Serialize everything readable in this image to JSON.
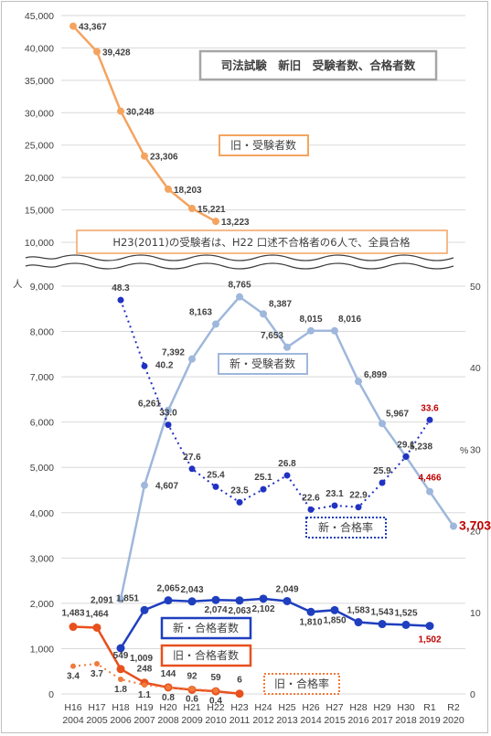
{
  "title": "司法試験　新旧　受験者数、合格者数",
  "unit_left": "人",
  "unit_right": "%",
  "note": "H23(2011)の受験者は、H22 口述不合格者の6人で、全員合格",
  "legends": {
    "old_examinees": "旧・受験者数",
    "new_examinees": "新・受験者数",
    "new_pass_rate": "新・合格率",
    "new_passers": "新・合格者数",
    "old_passers": "旧・合格者数",
    "old_pass_rate": "旧・合格率"
  },
  "colors": {
    "old_examinees": "#f4a460",
    "new_examinees": "#9fb7dc",
    "new_pass_rate": "#2132c2",
    "new_passers": "#1f3fbf",
    "old_passers": "#e8501e",
    "old_pass_rate": "#f07a3c",
    "highlight": "#c00000"
  },
  "chart_data": [
    {
      "type": "line",
      "panel": "upper",
      "yticks": [
        "10,000",
        "15,000",
        "20,000",
        "25,000",
        "30,000",
        "35,000",
        "40,000",
        "45,000"
      ],
      "ylim": [
        10000,
        45000
      ],
      "series": [
        {
          "name": "旧・受験者数",
          "x": [
            0,
            1,
            2,
            3,
            4,
            5,
            6
          ],
          "values": [
            43367,
            39428,
            30248,
            23306,
            18203,
            15221,
            13223
          ],
          "labels": [
            "43,367",
            "39,428",
            "30,248",
            "23,306",
            "18,203",
            "15,221",
            "13,223"
          ]
        }
      ]
    },
    {
      "type": "line",
      "panel": "lower",
      "categories": [
        "H16",
        "H17",
        "H18",
        "H19",
        "H20",
        "H21",
        "H22",
        "H23",
        "H24",
        "H25",
        "H26",
        "H27",
        "H28",
        "H29",
        "H30",
        "R1",
        "R2"
      ],
      "years": [
        "2004",
        "2005",
        "2006",
        "2007",
        "2008",
        "2009",
        "2010",
        "2011",
        "2012",
        "2013",
        "2014",
        "2015",
        "2016",
        "2017",
        "2018",
        "2019",
        "2020"
      ],
      "yticks_left": [
        "0",
        "1,000",
        "2,000",
        "3,000",
        "4,000",
        "5,000",
        "6,000",
        "7,000",
        "8,000",
        "9,000"
      ],
      "ylim_left": [
        0,
        9000
      ],
      "yticks_right": [
        "0",
        "10",
        "20",
        "30",
        "40",
        "50"
      ],
      "ylim_right": [
        0,
        50
      ],
      "series": [
        {
          "name": "新・受験者数",
          "axis": "left",
          "x": [
            2,
            3,
            4,
            5,
            6,
            7,
            8,
            9,
            10,
            11,
            12,
            13,
            14,
            15,
            16
          ],
          "values": [
            2091,
            4607,
            6261,
            7392,
            8163,
            8765,
            8387,
            7653,
            8015,
            8016,
            6899,
            5967,
            5238,
            4466,
            3703
          ],
          "labels": [
            "2,091",
            "4,607",
            "6,261",
            "7,392",
            "8,163",
            "8,765",
            "8,387",
            "7,653",
            "8,015",
            "8,016",
            "6,899",
            "5,967",
            "5,238",
            "4,466",
            "3,703"
          ]
        },
        {
          "name": "新・合格率",
          "axis": "right",
          "x": [
            2,
            3,
            4,
            5,
            6,
            7,
            8,
            9,
            10,
            11,
            12,
            13,
            14,
            15
          ],
          "values": [
            48.3,
            40.2,
            33.0,
            27.6,
            25.4,
            23.5,
            25.1,
            26.8,
            22.6,
            23.1,
            22.9,
            25.9,
            29.1,
            33.6
          ],
          "labels": [
            "48.3",
            "40.2",
            "33.0",
            "27.6",
            "25.4",
            "23.5",
            "25.1",
            "26.8",
            "22.6",
            "23.1",
            "22.9",
            "25.9",
            "29.1",
            "33.6"
          ]
        },
        {
          "name": "新・合格者数",
          "axis": "left",
          "x": [
            2,
            3,
            4,
            5,
            6,
            7,
            8,
            9,
            10,
            11,
            12,
            13,
            14,
            15
          ],
          "values": [
            1009,
            1851,
            2065,
            2043,
            2074,
            2063,
            2102,
            2049,
            1810,
            1850,
            1583,
            1543,
            1525,
            1502
          ],
          "labels": [
            "1,009",
            "1,851",
            "2,065",
            "2,043",
            "2,074",
            "2,063",
            "2,102",
            "2,049",
            "1,810",
            "1,850",
            "1,583",
            "1,543",
            "1,525",
            "1,502"
          ]
        },
        {
          "name": "旧・合格者数",
          "axis": "left",
          "x": [
            0,
            1,
            2,
            3,
            4,
            5,
            6,
            7
          ],
          "values": [
            1483,
            1464,
            549,
            248,
            144,
            92,
            59,
            6
          ],
          "labels": [
            "1,483",
            "1,464",
            "549",
            "248",
            "144",
            "92",
            "59",
            "6"
          ]
        },
        {
          "name": "旧・合格率",
          "axis": "right",
          "x": [
            0,
            1,
            2,
            3,
            4,
            5,
            6
          ],
          "values": [
            3.4,
            3.7,
            1.8,
            1.1,
            0.8,
            0.6,
            0.4
          ],
          "labels": [
            "3.4",
            "3.7",
            "1.8",
            "1.1",
            "0.8",
            "0.6",
            "0.4"
          ]
        }
      ]
    }
  ]
}
